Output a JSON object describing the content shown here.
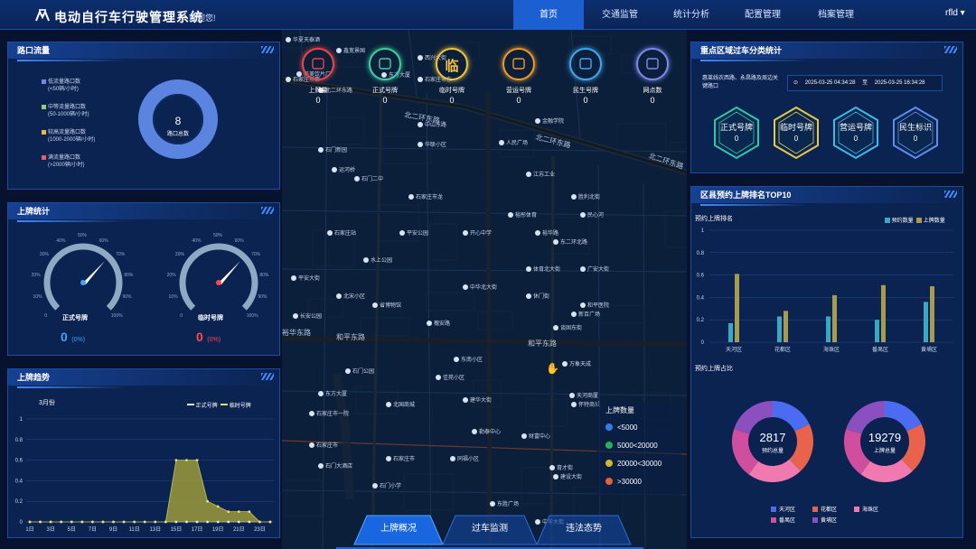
{
  "app": {
    "title": "电动自行车行驶管理系统",
    "welcome": "欢迎您!",
    "user": "rfld ▾"
  },
  "nav": [
    {
      "label": "首页",
      "active": true
    },
    {
      "label": "交通监管"
    },
    {
      "label": "统计分析"
    },
    {
      "label": "配置管理"
    },
    {
      "label": "档案管理"
    }
  ],
  "intersection_flow": {
    "title": "路口流量",
    "legend": [
      {
        "label": "低流量路口数",
        "range": "(<50辆/小时)",
        "color": "#7c84e8"
      },
      {
        "label": "中等流量路口数",
        "range": "(50-1000辆/小时)",
        "color": "#8fd17a"
      },
      {
        "label": "较高流量路口数",
        "range": "(1000-2000辆/小时)",
        "color": "#f0b640"
      },
      {
        "label": "满流量路口数",
        "range": "(>2000辆/小时)",
        "color": "#ee5c5c"
      }
    ],
    "total": "8",
    "total_label": "路口总数",
    "ring_color": "#5b84e0"
  },
  "plate_stats": {
    "title": "上牌统计",
    "gauges": [
      {
        "label": "正式号牌",
        "value": "0",
        "pct": "(0%)",
        "color": "#3fa4ff"
      },
      {
        "label": "临时号牌",
        "value": "0",
        "pct": "(0%)",
        "color": "#ff4a4a"
      }
    ],
    "ticks": [
      "0",
      "10%",
      "20%",
      "30%",
      "40%",
      "50%",
      "60%",
      "70%",
      "80%",
      "90%",
      "100%"
    ]
  },
  "plate_trend": {
    "title": "上牌趋势",
    "month": "3月份",
    "legend": [
      "正式号牌",
      "临时号牌"
    ]
  },
  "kpis": [
    {
      "label": "上牌量",
      "value": "0",
      "color": "#e8474a",
      "icon": "layers-icon"
    },
    {
      "label": "正式号牌",
      "value": "0",
      "color": "#3ad1a0",
      "icon": "card-icon"
    },
    {
      "label": "临时号牌",
      "value": "0",
      "color": "#f2c53d",
      "icon": "temp-plate-icon",
      "glyph": "临"
    },
    {
      "label": "营运号牌",
      "value": "0",
      "color": "#f09a28",
      "icon": "route-icon"
    },
    {
      "label": "民生号牌",
      "value": "0",
      "color": "#41a8f0",
      "icon": "clock-icon"
    },
    {
      "label": "网点数",
      "value": "0",
      "color": "#7d8af0",
      "icon": "building-icon"
    }
  ],
  "map": {
    "legend_title": "上牌数量",
    "legend": [
      {
        "label": "<5000",
        "color": "#2f7fe8"
      },
      {
        "label": "5000<20000",
        "color": "#27b05a"
      },
      {
        "label": "20000<30000",
        "color": "#d4b530"
      },
      {
        "label": ">30000",
        "color": "#e2633a"
      }
    ],
    "roads": [
      "北二环东路",
      "北二环东路",
      "北二环东路",
      "和平东路",
      "和平东路",
      "裕华东路"
    ],
    "pois": [
      "华夏天泰酒",
      "鑫宽景国",
      "石家庄市第",
      "美美饮片厂",
      "北二环东路",
      "东方大厦",
      "西兴大街",
      "石家庄市东",
      "运河桥",
      "石门新园",
      "石门二中",
      "金融学院",
      "石家庄市龙",
      "华联小区",
      "江苏工业",
      "北国商城",
      "石门公园",
      "石家庄市",
      "佳苑小区",
      "石门大酒店",
      "开心中学",
      "水上公园",
      "和平医院",
      "新百广场",
      "东方大厦",
      "天河商厦",
      "东南小区",
      "石家庄市",
      "同福小区",
      "建华大街",
      "长安公园",
      "石家庄市一院",
      "财富中心",
      "民心河",
      "东二环北路",
      "胜利北街",
      "中山东路",
      "体育北大街",
      "中华北大街",
      "休门街",
      "谈固东街",
      "北宋小区",
      "槐安路",
      "万象天成",
      "怀特商城",
      "勒泰中心",
      "东胜广场",
      "建设大街",
      "育才街",
      "平安大街",
      "省博物馆",
      "人民广场",
      "裕华路",
      "广安大街",
      "石家庄站",
      "平安公园",
      "裕彤体育",
      "石门小学",
      "中华大街"
    ]
  },
  "bottom_tabs": [
    "上牌概况",
    "过车监测",
    "违法态势"
  ],
  "key_area": {
    "title": "重点区域过车分类统计",
    "desc": "惠莱线农西路、永昌路及周边关键路口",
    "start": "2025-03-25 04:34:28",
    "sep": "至",
    "end": "2025-03-25 16:34:28",
    "items": [
      {
        "label": "正式号牌",
        "value": "0",
        "color": "#2ec7a8"
      },
      {
        "label": "临时号牌",
        "value": "0",
        "color": "#e6c84a"
      },
      {
        "label": "营运号牌",
        "value": "0",
        "color": "#3fb8e8"
      },
      {
        "label": "民生标识",
        "value": "0",
        "color": "#5f8cf0"
      }
    ]
  },
  "district": {
    "title": "区县预约上牌排名TOP10",
    "sub1": "预约上牌排名",
    "sub2": "预约上牌占比",
    "legend": [
      "预约数量",
      "上牌数量"
    ],
    "donut1": {
      "value": "2817",
      "label": "预约总量"
    },
    "donut2": {
      "value": "19279",
      "label": "上牌总量"
    },
    "donut_legend": [
      "天河区",
      "花都区",
      "海珠区",
      "番禺区",
      "黄埔区"
    ]
  },
  "chart_data": [
    {
      "type": "bar",
      "title": "预约上牌排名",
      "categories": [
        "天河区",
        "花都区",
        "海珠区",
        "番禺区",
        "黄埔区"
      ],
      "series": [
        {
          "name": "预约数量",
          "values": [
            0.17,
            0.23,
            0.23,
            0.2,
            0.36
          ],
          "color": "#39a8c4"
        },
        {
          "name": "上牌数量",
          "values": [
            0.61,
            0.28,
            0.42,
            0.51,
            0.5
          ],
          "color": "#a89a4e"
        }
      ],
      "ylim": [
        0,
        1
      ],
      "yticks": [
        "0",
        "0.2",
        "0.4",
        "0.6",
        "0.8",
        "1"
      ],
      "grid": true,
      "legend": "top-right"
    },
    {
      "type": "area",
      "title": "上牌趋势",
      "categories": [
        "1日",
        "3日",
        "5日",
        "7日",
        "9日",
        "11日",
        "13日",
        "15日",
        "17日",
        "19日",
        "21日",
        "23日"
      ],
      "x": [
        1,
        2,
        3,
        4,
        5,
        6,
        7,
        8,
        9,
        10,
        11,
        12,
        13,
        14,
        15,
        16,
        17,
        18,
        19,
        20,
        21,
        22,
        23,
        24
      ],
      "series": [
        {
          "name": "正式号牌",
          "values": [
            0,
            0,
            0,
            0,
            0,
            0,
            0,
            0,
            0,
            0,
            0,
            0,
            0,
            0,
            0,
            0,
            0,
            0,
            0,
            0,
            0,
            0,
            0,
            0
          ]
        },
        {
          "name": "临时号牌",
          "values": [
            0,
            0,
            0,
            0,
            0,
            0,
            0,
            0,
            0,
            0,
            0,
            0,
            0,
            0,
            0.6,
            0.6,
            0.6,
            0.2,
            0.15,
            0.1,
            0.1,
            0.1,
            0,
            0
          ]
        }
      ],
      "ylim": [
        0,
        1
      ],
      "yticks": [
        "0",
        "0.2",
        "0.4",
        "0.6",
        "0.8",
        "1"
      ],
      "legend": "top-right"
    },
    {
      "type": "pie",
      "title": "预约总量",
      "center_value": "2817",
      "categories": [
        "天河区",
        "花都区",
        "海珠区",
        "番禺区",
        "黄埔区"
      ],
      "values": [
        18,
        20,
        22,
        20,
        20
      ],
      "colors": [
        "#4b6cf0",
        "#e8624c",
        "#f07ab0",
        "#d04ea0",
        "#8b4fc0"
      ]
    },
    {
      "type": "pie",
      "title": "上牌总量",
      "center_value": "19279",
      "categories": [
        "天河区",
        "花都区",
        "海珠区",
        "番禺区",
        "黄埔区"
      ],
      "values": [
        18,
        20,
        22,
        20,
        20
      ],
      "colors": [
        "#4b6cf0",
        "#e8624c",
        "#f07ab0",
        "#d04ea0",
        "#8b4fc0"
      ]
    }
  ]
}
